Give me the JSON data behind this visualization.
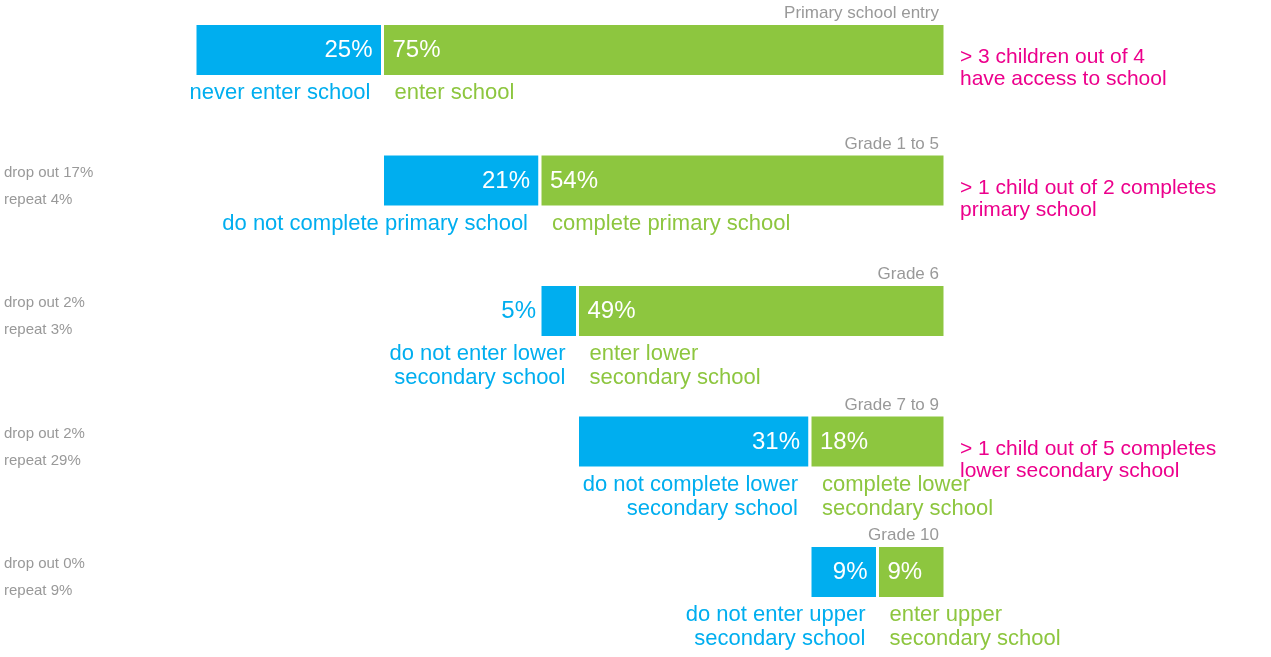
{
  "chart_data": {
    "type": "bar",
    "orientation": "horizontal",
    "stacked": true,
    "tick_labels": false,
    "categories": [
      "Primary school entry",
      "Grade 1 to 5",
      "Grade 6",
      "Grade 7 to 9",
      "Grade 10"
    ],
    "series": [
      {
        "color": "#00aeef",
        "values": [
          25,
          21,
          5,
          31,
          9
        ],
        "value_labels": [
          "25%",
          "21%",
          "5%",
          "31%",
          "9%"
        ]
      },
      {
        "color": "#8dc63f",
        "values": [
          75,
          54,
          49,
          18,
          9
        ],
        "value_labels": [
          "75%",
          "54%",
          "49%",
          "18%",
          "9%"
        ]
      }
    ],
    "annotations": [
      "never enter school",
      "enter school",
      "do not complete primary school",
      "complete primary school",
      "do not enter lower\nsecondary school",
      "enter lower\nsecondary school",
      "do not complete lower\nsecondary school",
      "complete lower\nsecondary school",
      "do not enter upper\nsecondary school",
      "enter upper\nsecondary school",
      "drop out 17%",
      "repeat 4%",
      "drop out 2%",
      "repeat 3%",
      "drop out 2%",
      "repeat 29%",
      "drop out 0%",
      "repeat 9%",
      "> 3 children out of 4\nhave access to school",
      "> 1 child out of 2 completes\nprimary school",
      "> 1 child out of 5 completes\nlower secondary school"
    ]
  }
}
